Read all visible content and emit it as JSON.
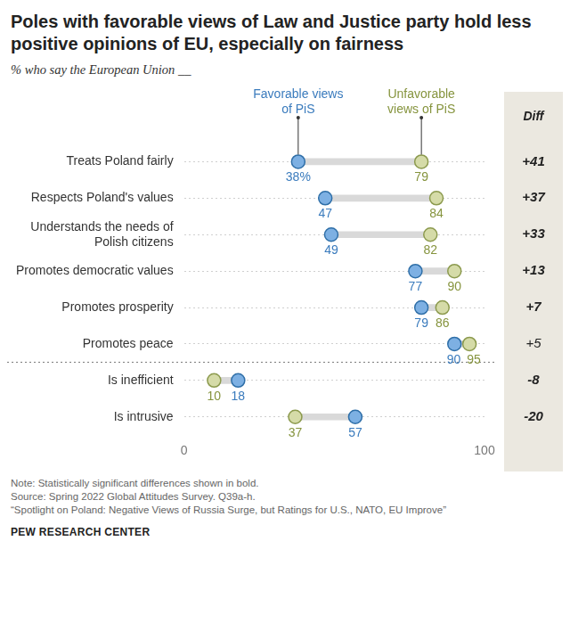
{
  "chart_data": {
    "type": "dot",
    "title": "Poles with favorable views of Law and Justice party hold less positive opinions of EU, especially on fairness",
    "subtitle": "% who say the European Union __",
    "categories": [
      "Treats Poland fairly",
      "Respects Poland's values",
      "Understands the needs of Polish citizens",
      "Promotes democratic values",
      "Promotes prosperity",
      "Promotes peace",
      "Is inefficient",
      "Is intrusive"
    ],
    "series": [
      {
        "name": "Favorable views of PiS",
        "color": "#7db0e3",
        "values": [
          38,
          47,
          49,
          77,
          79,
          90,
          18,
          57
        ],
        "value_labels": [
          "38%",
          "47",
          "49",
          "77",
          "79",
          "90",
          "18",
          "57"
        ]
      },
      {
        "name": "Unfavorable views of PiS",
        "color": "#d5dba8",
        "values": [
          79,
          84,
          82,
          90,
          86,
          95,
          10,
          37
        ]
      }
    ],
    "diff_title": "Diff",
    "diff": [
      41,
      37,
      33,
      13,
      7,
      5,
      -8,
      -20
    ],
    "diff_labels": [
      "+41",
      "+37",
      "+33",
      "+13",
      "+7",
      "+5",
      "-8",
      "-20"
    ],
    "diff_significant": [
      true,
      true,
      true,
      true,
      true,
      false,
      true,
      true
    ],
    "xlim": [
      0,
      100
    ],
    "xticks": [
      0,
      100
    ],
    "grid": true,
    "data_labels": true,
    "legend": "top",
    "orientation": "horizontal",
    "notes": [
      "Note: Statistically significant differences shown in bold.",
      "Source: Spring 2022 Global Attitudes Survey. Q39a-h.",
      "“Spotlight on Poland: Negative Views of Russia Surge, but Ratings for U.S., NATO, EU Improve”"
    ],
    "credit": "PEW RESEARCH CENTER"
  }
}
